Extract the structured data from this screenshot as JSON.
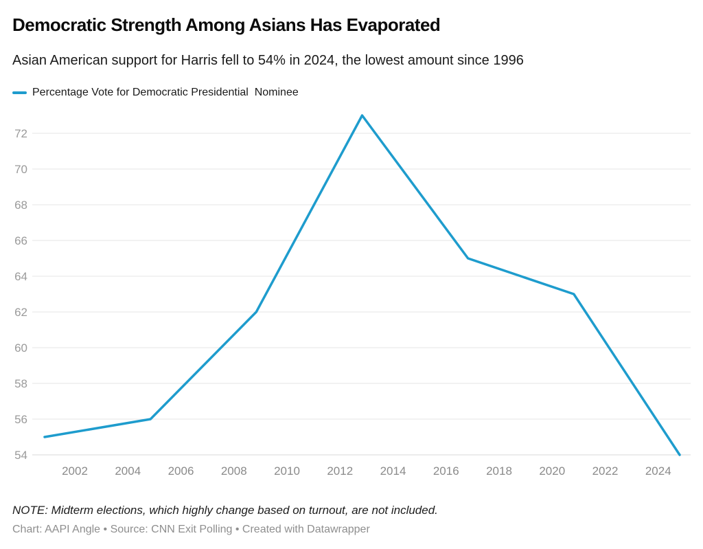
{
  "chart_data": {
    "type": "line",
    "title": "Democratic Strength Among Asians Has Evaporated",
    "subtitle": "Asian American support for Harris fell to 54% in 2024, the lowest amount since 1996",
    "series": [
      {
        "name": "Percentage Vote for Democratic Presidential  Nominee",
        "x": [
          2000,
          2004,
          2008,
          2012,
          2016,
          2020,
          2024
        ],
        "values": [
          55,
          56,
          62,
          73,
          65,
          63,
          54
        ]
      }
    ],
    "x_ticks": [
      "2002",
      "2004",
      "2006",
      "2008",
      "2010",
      "2012",
      "2014",
      "2016",
      "2018",
      "2020",
      "2022",
      "2024"
    ],
    "x_tick_years": [
      2002,
      2004,
      2006,
      2008,
      2010,
      2012,
      2014,
      2016,
      2018,
      2020,
      2022,
      2024
    ],
    "y_ticks": [
      54,
      56,
      58,
      60,
      62,
      64,
      66,
      68,
      70,
      72
    ],
    "xlim": [
      2000,
      2024
    ],
    "ylim": [
      54,
      73
    ],
    "xlabel": "",
    "ylabel": "",
    "grid": "horizontal",
    "legend_position": "top-left",
    "line_color": "#1e9ccd",
    "axis_label_color": "#9a9a9a",
    "x_axis_label_color": "#8a8a8a",
    "grid_color": "#e5e5e5",
    "baseline_color": "#d9d9d9"
  },
  "footer": {
    "note": "NOTE: Midterm elections, which highly change based on turnout, are not included.",
    "byline": "Chart: AAPI Angle • Source: CNN Exit Polling • Created with Datawrapper"
  }
}
